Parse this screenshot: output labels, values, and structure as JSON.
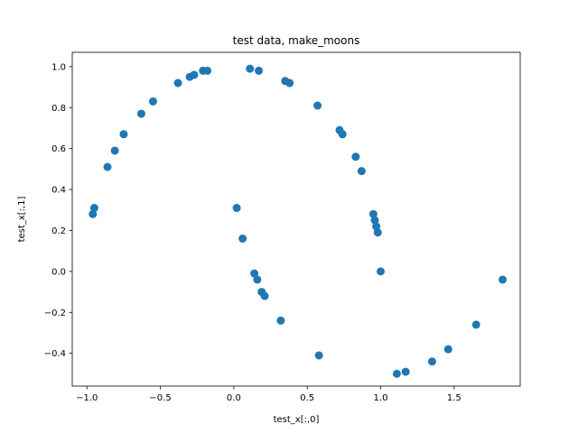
{
  "chart_data": {
    "type": "scatter",
    "title": "test data, make_moons",
    "xlabel": "test_x[:,0]",
    "ylabel": "test_x[:,1]",
    "xlim": [
      -1.1,
      1.95
    ],
    "ylim": [
      -0.56,
      1.07
    ],
    "xticks": [
      -1.0,
      -0.5,
      0.0,
      0.5,
      1.0,
      1.5
    ],
    "xtick_labels": [
      "−1.0",
      "−0.5",
      "0.0",
      "0.5",
      "1.0",
      "1.5"
    ],
    "yticks": [
      -0.4,
      -0.2,
      0.0,
      0.2,
      0.4,
      0.6,
      0.8,
      1.0
    ],
    "ytick_labels": [
      "−0.4",
      "−0.2",
      "0.0",
      "0.2",
      "0.4",
      "0.6",
      "0.8",
      "1.0"
    ],
    "grid": false,
    "marker_color": "#1f77b4",
    "series": [
      {
        "points": [
          [
            -0.96,
            0.28
          ],
          [
            -0.95,
            0.31
          ],
          [
            -0.86,
            0.51
          ],
          [
            -0.81,
            0.59
          ],
          [
            -0.75,
            0.67
          ],
          [
            -0.63,
            0.77
          ],
          [
            -0.55,
            0.83
          ],
          [
            -0.38,
            0.92
          ],
          [
            -0.3,
            0.95
          ],
          [
            -0.27,
            0.96
          ],
          [
            -0.21,
            0.98
          ],
          [
            -0.18,
            0.98
          ],
          [
            0.11,
            0.99
          ],
          [
            0.17,
            0.98
          ],
          [
            0.35,
            0.93
          ],
          [
            0.38,
            0.92
          ],
          [
            0.57,
            0.81
          ],
          [
            0.72,
            0.69
          ],
          [
            0.74,
            0.67
          ],
          [
            0.83,
            0.56
          ],
          [
            0.87,
            0.49
          ],
          [
            0.95,
            0.28
          ],
          [
            0.96,
            0.25
          ],
          [
            0.97,
            0.22
          ],
          [
            0.98,
            0.19
          ],
          [
            1.0,
            0.0
          ],
          [
            0.02,
            0.31
          ],
          [
            0.06,
            0.16
          ],
          [
            0.14,
            -0.01
          ],
          [
            0.16,
            -0.04
          ],
          [
            0.19,
            -0.1
          ],
          [
            0.21,
            -0.12
          ],
          [
            0.32,
            -0.24
          ],
          [
            0.58,
            -0.41
          ],
          [
            1.11,
            -0.5
          ],
          [
            1.17,
            -0.49
          ],
          [
            1.35,
            -0.44
          ],
          [
            1.46,
            -0.38
          ],
          [
            1.65,
            -0.26
          ],
          [
            1.83,
            -0.04
          ]
        ]
      }
    ]
  }
}
